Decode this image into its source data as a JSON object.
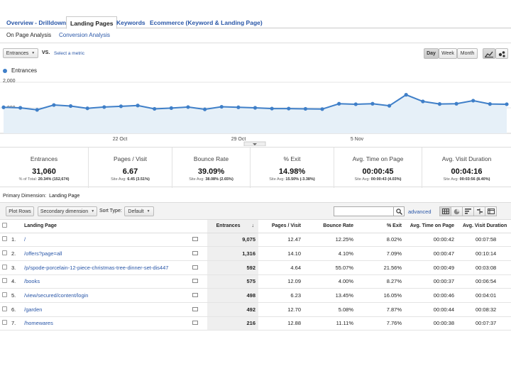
{
  "tabs": [
    {
      "label": "Overview - Drilldown"
    },
    {
      "label": "Landing Pages"
    },
    {
      "label": "Keywords"
    },
    {
      "label": "Ecommerce (Keyword & Landing Page)"
    }
  ],
  "subtabs": [
    {
      "label": "On Page Analysis"
    },
    {
      "label": "Conversion Analysis"
    }
  ],
  "chart_controls": {
    "metric_select": "Entrances",
    "vs": "VS.",
    "select_metric": "Select a metric",
    "periods": [
      "Day",
      "Week",
      "Month"
    ],
    "selected_period": "Day"
  },
  "chart_data": {
    "type": "line",
    "series": [
      {
        "name": "Entrances",
        "color": "#3f7fc8",
        "values": [
          1020,
          1000,
          920,
          1110,
          1070,
          980,
          1030,
          1060,
          1090,
          960,
          990,
          1030,
          940,
          1040,
          1020,
          1000,
          970,
          970,
          960,
          950,
          1160,
          1140,
          1160,
          1080,
          1510,
          1250,
          1150,
          1160,
          1280,
          1150,
          1140
        ]
      }
    ],
    "y_tick_labels": [
      "1,000",
      "2,000"
    ],
    "ylim": [
      0,
      2000
    ],
    "x_tick_labels": [
      "22 Oct",
      "29 Oct",
      "5 Nov"
    ],
    "grid": true
  },
  "metrics": [
    {
      "title": "Entrances",
      "value": "31,060",
      "sub_label": "% of Total:",
      "sub_value": "20.34% (152,674)"
    },
    {
      "title": "Pages / Visit",
      "value": "6.67",
      "sub_label": "Site Avg:",
      "sub_value": "6.45 (3.51%)"
    },
    {
      "title": "Bounce Rate",
      "value": "39.09%",
      "sub_label": "Site Avg:",
      "sub_value": "38.08% (2.65%)"
    },
    {
      "title": "% Exit",
      "value": "14.98%",
      "sub_label": "Site Avg:",
      "sub_value": "15.50% (-3.38%)"
    },
    {
      "title": "Avg. Time on Page",
      "value": "00:00:45",
      "sub_label": "Site Avg:",
      "sub_value": "00:00:43 (4.03%)"
    },
    {
      "title": "Avg. Visit Duration",
      "value": "00:04:16",
      "sub_label": "Site Avg:",
      "sub_value": "00:03:56 (8.40%)"
    }
  ],
  "primary_dimension": {
    "label": "Primary Dimension:",
    "value": "Landing Page"
  },
  "toolbar": {
    "plot_rows": "Plot Rows",
    "secondary_dimension": "Secondary dimension",
    "sort_type_label": "Sort Type:",
    "sort_type_value": "Default",
    "advanced": "advanced"
  },
  "table": {
    "headers": [
      "Landing Page",
      "Entrances",
      "Pages / Visit",
      "Bounce Rate",
      "% Exit",
      "Avg. Time on Page",
      "Avg. Visit Duration"
    ],
    "rows": [
      {
        "n": "1.",
        "page": "/",
        "entrances": "9,075",
        "ppv": "12.47",
        "bounce": "12.25%",
        "exit": "8.02%",
        "top": "00:00:42",
        "avd": "00:07:58"
      },
      {
        "n": "2.",
        "page": "/offers?page=all",
        "entrances": "1,316",
        "ppv": "14.10",
        "bounce": "4.10%",
        "exit": "7.09%",
        "top": "00:00:47",
        "avd": "00:10:14"
      },
      {
        "n": "3.",
        "page": "/p/spode-porcelain-12-piece-christmas-tree-dinner-set-dis447",
        "entrances": "592",
        "ppv": "4.64",
        "bounce": "55.07%",
        "exit": "21.56%",
        "top": "00:00:49",
        "avd": "00:03:08"
      },
      {
        "n": "4.",
        "page": "/books",
        "entrances": "575",
        "ppv": "12.09",
        "bounce": "4.00%",
        "exit": "8.27%",
        "top": "00:00:37",
        "avd": "00:06:54"
      },
      {
        "n": "5.",
        "page": "/view/secured/content/login",
        "entrances": "498",
        "ppv": "6.23",
        "bounce": "13.45%",
        "exit": "16.05%",
        "top": "00:00:46",
        "avd": "00:04:01"
      },
      {
        "n": "6.",
        "page": "/garden",
        "entrances": "492",
        "ppv": "12.70",
        "bounce": "5.08%",
        "exit": "7.87%",
        "top": "00:00:44",
        "avd": "00:08:32"
      },
      {
        "n": "7.",
        "page": "/homewares",
        "entrances": "216",
        "ppv": "12.88",
        "bounce": "11.11%",
        "exit": "7.76%",
        "top": "00:00:38",
        "avd": "00:07:37"
      }
    ]
  }
}
